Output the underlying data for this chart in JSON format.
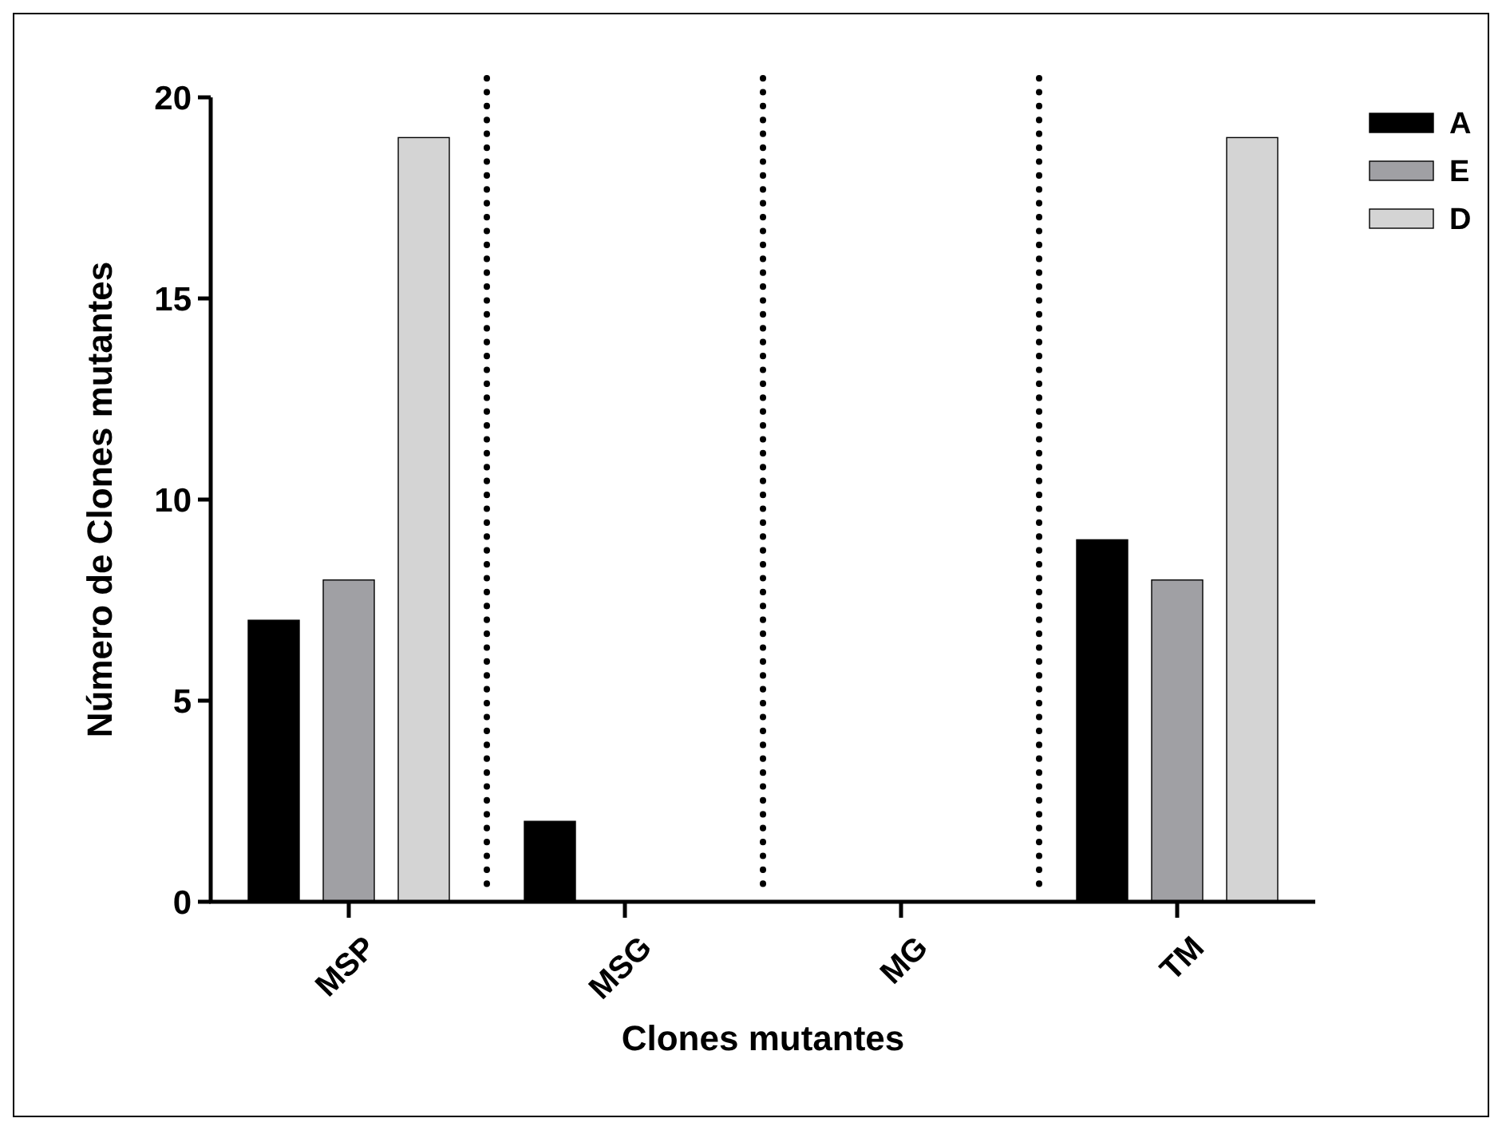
{
  "chart_data": {
    "type": "bar",
    "xlabel": "Clones mutantes",
    "ylabel": "Número de Clones mutantes",
    "categories": [
      "MSP",
      "MSG",
      "MG",
      "TM"
    ],
    "series": [
      {
        "name": "A",
        "color": "#000000",
        "values": [
          7,
          2,
          0,
          9
        ]
      },
      {
        "name": "E",
        "color": "#a0a0a4",
        "values": [
          8,
          0,
          0,
          8
        ]
      },
      {
        "name": "D",
        "color": "#d4d4d4",
        "values": [
          19,
          0,
          0,
          19
        ]
      }
    ],
    "ylim": [
      0,
      20
    ],
    "yticks": [
      0,
      5,
      10,
      15,
      20
    ],
    "grid": false,
    "legend": "top right"
  }
}
